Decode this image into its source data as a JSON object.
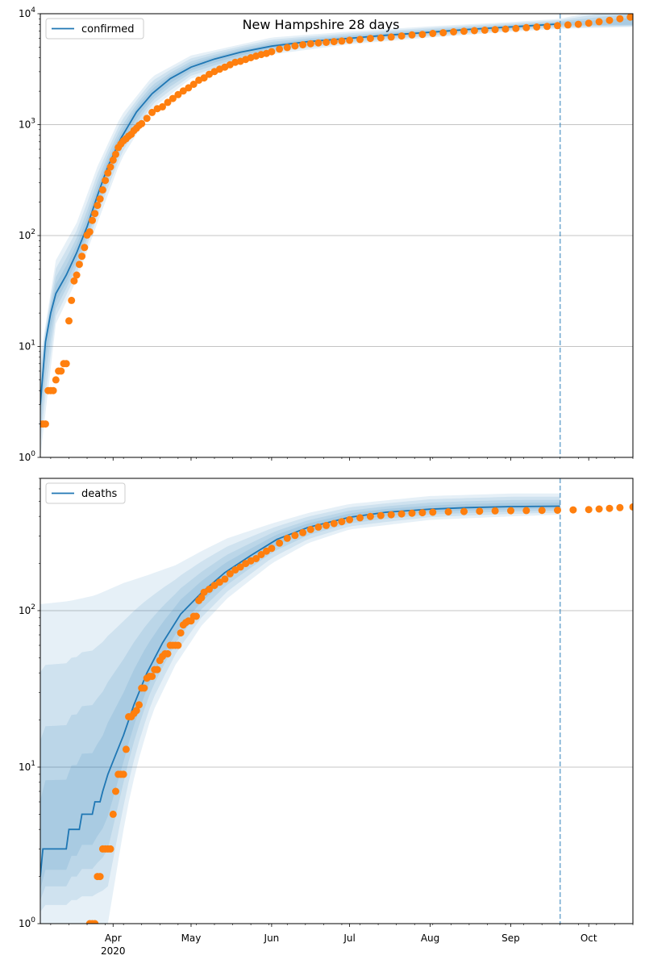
{
  "title": "New Hampshire 28 days",
  "colors": {
    "model": "#1f77b4",
    "observed": "#ff7f0e",
    "band": "#1f77b4",
    "grid": "#b0b0b0"
  },
  "x_axis": {
    "ticks": [
      "Apr",
      "May",
      "Jun",
      "Jul",
      "Aug",
      "Sep",
      "Oct"
    ],
    "tick_dates": [
      "2020-04-01",
      "2020-05-01",
      "2020-06-01",
      "2020-07-01",
      "2020-08-01",
      "2020-09-01",
      "2020-10-01"
    ],
    "year_label": "2020",
    "range": [
      "2020-03-04",
      "2020-10-18"
    ]
  },
  "forecast_start": "2020-09-20",
  "chart_data": [
    {
      "type": "line",
      "scale": "log",
      "legend": "confirmed",
      "legend_location": "upper-left",
      "grid": "horizontal",
      "ylim": [
        1,
        10000
      ],
      "y_ticks": [
        {
          "base": "10",
          "exp": "0"
        },
        {
          "base": "10",
          "exp": "1"
        },
        {
          "base": "10",
          "exp": "2"
        },
        {
          "base": "10",
          "exp": "3"
        },
        {
          "base": "10",
          "exp": "4"
        }
      ],
      "model": [
        [
          "2020-03-04",
          3
        ],
        [
          "2020-03-06",
          11
        ],
        [
          "2020-03-08",
          20
        ],
        [
          "2020-03-10",
          30
        ],
        [
          "2020-03-14",
          44
        ],
        [
          "2020-03-18",
          70
        ],
        [
          "2020-03-22",
          120
        ],
        [
          "2020-03-26",
          230
        ],
        [
          "2020-03-30",
          420
        ],
        [
          "2020-04-04",
          750
        ],
        [
          "2020-04-10",
          1300
        ],
        [
          "2020-04-16",
          1900
        ],
        [
          "2020-04-23",
          2600
        ],
        [
          "2020-05-01",
          3300
        ],
        [
          "2020-05-10",
          3900
        ],
        [
          "2020-05-20",
          4500
        ],
        [
          "2020-06-01",
          5100
        ],
        [
          "2020-06-15",
          5600
        ],
        [
          "2020-07-01",
          6000
        ],
        [
          "2020-07-15",
          6400
        ],
        [
          "2020-08-01",
          6800
        ],
        [
          "2020-08-15",
          7200
        ],
        [
          "2020-09-01",
          7600
        ],
        [
          "2020-09-20",
          8100
        ]
      ],
      "bands": [
        [
          [
            "2020-03-04",
            1
          ],
          [
            "2020-03-10",
            16
          ],
          [
            "2020-03-18",
            40
          ],
          [
            "2020-03-26",
            130
          ],
          [
            "2020-04-04",
            480
          ],
          [
            "2020-04-16",
            1400
          ],
          [
            "2020-05-01",
            2600
          ],
          [
            "2020-06-01",
            4300
          ],
          [
            "2020-07-01",
            5300
          ],
          [
            "2020-08-01",
            6100
          ],
          [
            "2020-09-01",
            6900
          ],
          [
            "2020-09-20",
            7300
          ],
          [
            "2020-10-18",
            7600
          ]
        ],
        [
          [
            "2020-03-04",
            8
          ],
          [
            "2020-03-10",
            60
          ],
          [
            "2020-03-18",
            130
          ],
          [
            "2020-03-26",
            420
          ],
          [
            "2020-04-04",
            1200
          ],
          [
            "2020-04-16",
            2700
          ],
          [
            "2020-05-01",
            4200
          ],
          [
            "2020-06-01",
            6100
          ],
          [
            "2020-07-01",
            6900
          ],
          [
            "2020-08-01",
            7700
          ],
          [
            "2020-09-01",
            8400
          ],
          [
            "2020-09-20",
            9000
          ],
          [
            "2020-10-18",
            12500
          ]
        ]
      ],
      "observed": [
        [
          "2020-03-04",
          2
        ],
        [
          "2020-03-05",
          2
        ],
        [
          "2020-03-06",
          2
        ],
        [
          "2020-03-07",
          4
        ],
        [
          "2020-03-08",
          4
        ],
        [
          "2020-03-09",
          4
        ],
        [
          "2020-03-10",
          5
        ],
        [
          "2020-03-11",
          6
        ],
        [
          "2020-03-12",
          6
        ],
        [
          "2020-03-13",
          7
        ],
        [
          "2020-03-14",
          7
        ],
        [
          "2020-03-15",
          17
        ],
        [
          "2020-03-16",
          26
        ],
        [
          "2020-03-17",
          39
        ],
        [
          "2020-03-18",
          44
        ],
        [
          "2020-03-19",
          55
        ],
        [
          "2020-03-20",
          65
        ],
        [
          "2020-03-21",
          78
        ],
        [
          "2020-03-22",
          101
        ],
        [
          "2020-03-23",
          108
        ],
        [
          "2020-03-24",
          137
        ],
        [
          "2020-03-25",
          158
        ],
        [
          "2020-03-26",
          187
        ],
        [
          "2020-03-27",
          214
        ],
        [
          "2020-03-28",
          258
        ],
        [
          "2020-03-29",
          314
        ],
        [
          "2020-03-30",
          367
        ],
        [
          "2020-03-31",
          415
        ],
        [
          "2020-04-01",
          479
        ],
        [
          "2020-04-02",
          540
        ],
        [
          "2020-04-03",
          621
        ],
        [
          "2020-04-04",
          669
        ],
        [
          "2020-04-05",
          715
        ],
        [
          "2020-04-06",
          747
        ],
        [
          "2020-04-07",
          788
        ],
        [
          "2020-04-08",
          819
        ],
        [
          "2020-04-09",
          885
        ],
        [
          "2020-04-10",
          929
        ],
        [
          "2020-04-11",
          985
        ],
        [
          "2020-04-12",
          1020
        ],
        [
          "2020-04-14",
          1139
        ],
        [
          "2020-04-16",
          1287
        ],
        [
          "2020-04-18",
          1392
        ],
        [
          "2020-04-20",
          1447
        ],
        [
          "2020-04-22",
          1588
        ],
        [
          "2020-04-24",
          1720
        ],
        [
          "2020-04-26",
          1864
        ],
        [
          "2020-04-28",
          2010
        ],
        [
          "2020-04-30",
          2146
        ],
        [
          "2020-05-02",
          2310
        ],
        [
          "2020-05-04",
          2518
        ],
        [
          "2020-05-06",
          2636
        ],
        [
          "2020-05-08",
          2843
        ],
        [
          "2020-05-10",
          3011
        ],
        [
          "2020-05-12",
          3160
        ],
        [
          "2020-05-14",
          3299
        ],
        [
          "2020-05-16",
          3464
        ],
        [
          "2020-05-18",
          3652
        ],
        [
          "2020-05-20",
          3721
        ],
        [
          "2020-05-22",
          3868
        ],
        [
          "2020-05-24",
          4014
        ],
        [
          "2020-05-26",
          4149
        ],
        [
          "2020-05-28",
          4286
        ],
        [
          "2020-05-30",
          4386
        ],
        [
          "2020-06-01",
          4545
        ],
        [
          "2020-06-04",
          4795
        ],
        [
          "2020-06-07",
          4960
        ],
        [
          "2020-06-10",
          5115
        ],
        [
          "2020-06-13",
          5251
        ],
        [
          "2020-06-16",
          5364
        ],
        [
          "2020-06-19",
          5450
        ],
        [
          "2020-06-22",
          5518
        ],
        [
          "2020-06-25",
          5598
        ],
        [
          "2020-06-28",
          5670
        ],
        [
          "2020-07-01",
          5760
        ],
        [
          "2020-07-05",
          5857
        ],
        [
          "2020-07-09",
          5986
        ],
        [
          "2020-07-13",
          6054
        ],
        [
          "2020-07-17",
          6165
        ],
        [
          "2020-07-21",
          6295
        ],
        [
          "2020-07-25",
          6436
        ],
        [
          "2020-07-29",
          6500
        ],
        [
          "2020-08-02",
          6640
        ],
        [
          "2020-08-06",
          6741
        ],
        [
          "2020-08-10",
          6861
        ],
        [
          "2020-08-14",
          6954
        ],
        [
          "2020-08-18",
          7034
        ],
        [
          "2020-08-22",
          7102
        ],
        [
          "2020-08-26",
          7188
        ],
        [
          "2020-08-30",
          7262
        ],
        [
          "2020-09-03",
          7360
        ],
        [
          "2020-09-07",
          7480
        ],
        [
          "2020-09-11",
          7580
        ],
        [
          "2020-09-15",
          7680
        ],
        [
          "2020-09-19",
          7810
        ],
        [
          "2020-09-23",
          7920
        ],
        [
          "2020-09-27",
          8035
        ],
        [
          "2020-10-01",
          8220
        ],
        [
          "2020-10-05",
          8470
        ],
        [
          "2020-10-09",
          8720
        ],
        [
          "2020-10-13",
          9020
        ],
        [
          "2020-10-17",
          9320
        ],
        [
          "2020-10-18",
          9430
        ]
      ]
    },
    {
      "type": "line",
      "scale": "log",
      "legend": "deaths",
      "legend_location": "upper-left",
      "grid": "horizontal",
      "ylim": [
        1,
        700
      ],
      "y_ticks": [
        {
          "base": "10",
          "exp": "0"
        },
        {
          "base": "10",
          "exp": "1"
        },
        {
          "base": "10",
          "exp": "2"
        }
      ],
      "model": [
        [
          "2020-03-04",
          2
        ],
        [
          "2020-03-05",
          3
        ],
        [
          "2020-03-14",
          3
        ],
        [
          "2020-03-15",
          4
        ],
        [
          "2020-03-19",
          4
        ],
        [
          "2020-03-20",
          5
        ],
        [
          "2020-03-24",
          5
        ],
        [
          "2020-03-25",
          6
        ],
        [
          "2020-03-27",
          6
        ],
        [
          "2020-03-28",
          7
        ],
        [
          "2020-03-30",
          9
        ],
        [
          "2020-04-02",
          12
        ],
        [
          "2020-04-05",
          16
        ],
        [
          "2020-04-09",
          25
        ],
        [
          "2020-04-14",
          40
        ],
        [
          "2020-04-20",
          62
        ],
        [
          "2020-04-27",
          95
        ],
        [
          "2020-05-05",
          130
        ],
        [
          "2020-05-14",
          175
        ],
        [
          "2020-05-24",
          225
        ],
        [
          "2020-06-03",
          285
        ],
        [
          "2020-06-15",
          340
        ],
        [
          "2020-07-01",
          395
        ],
        [
          "2020-07-15",
          425
        ],
        [
          "2020-08-01",
          445
        ],
        [
          "2020-08-15",
          455
        ],
        [
          "2020-09-01",
          462
        ],
        [
          "2020-09-20",
          465
        ]
      ],
      "bands": [
        [
          [
            "2020-03-04",
            1
          ],
          [
            "2020-03-30",
            1
          ],
          [
            "2020-04-02",
            2
          ],
          [
            "2020-04-06",
            5
          ],
          [
            "2020-04-10",
            10
          ],
          [
            "2020-04-16",
            22
          ],
          [
            "2020-04-25",
            45
          ],
          [
            "2020-05-05",
            80
          ],
          [
            "2020-05-15",
            120
          ],
          [
            "2020-06-01",
            200
          ],
          [
            "2020-06-15",
            270
          ],
          [
            "2020-07-01",
            330
          ],
          [
            "2020-08-01",
            380
          ],
          [
            "2020-09-01",
            400
          ],
          [
            "2020-09-20",
            410
          ]
        ],
        [
          [
            "2020-03-04",
            110
          ],
          [
            "2020-03-15",
            115
          ],
          [
            "2020-03-25",
            125
          ],
          [
            "2020-04-05",
            150
          ],
          [
            "2020-04-15",
            170
          ],
          [
            "2020-04-25",
            195
          ],
          [
            "2020-05-05",
            240
          ],
          [
            "2020-05-15",
            290
          ],
          [
            "2020-06-01",
            360
          ],
          [
            "2020-06-15",
            420
          ],
          [
            "2020-07-01",
            480
          ],
          [
            "2020-08-01",
            540
          ],
          [
            "2020-09-01",
            560
          ],
          [
            "2020-09-20",
            560
          ]
        ]
      ],
      "observed": [
        [
          "2020-03-23",
          1
        ],
        [
          "2020-03-24",
          1
        ],
        [
          "2020-03-25",
          1
        ],
        [
          "2020-03-26",
          2
        ],
        [
          "2020-03-27",
          2
        ],
        [
          "2020-03-28",
          3
        ],
        [
          "2020-03-29",
          3
        ],
        [
          "2020-03-30",
          3
        ],
        [
          "2020-03-31",
          3
        ],
        [
          "2020-04-01",
          5
        ],
        [
          "2020-04-02",
          7
        ],
        [
          "2020-04-03",
          9
        ],
        [
          "2020-04-04",
          9
        ],
        [
          "2020-04-05",
          9
        ],
        [
          "2020-04-06",
          13
        ],
        [
          "2020-04-07",
          21
        ],
        [
          "2020-04-08",
          21
        ],
        [
          "2020-04-09",
          22
        ],
        [
          "2020-04-10",
          23
        ],
        [
          "2020-04-11",
          25
        ],
        [
          "2020-04-12",
          32
        ],
        [
          "2020-04-13",
          32
        ],
        [
          "2020-04-14",
          37
        ],
        [
          "2020-04-15",
          38
        ],
        [
          "2020-04-16",
          38
        ],
        [
          "2020-04-17",
          42
        ],
        [
          "2020-04-18",
          42
        ],
        [
          "2020-04-19",
          48
        ],
        [
          "2020-04-20",
          51
        ],
        [
          "2020-04-21",
          53
        ],
        [
          "2020-04-22",
          53
        ],
        [
          "2020-04-23",
          60
        ],
        [
          "2020-04-24",
          60
        ],
        [
          "2020-04-25",
          60
        ],
        [
          "2020-04-26",
          60
        ],
        [
          "2020-04-27",
          72
        ],
        [
          "2020-04-28",
          81
        ],
        [
          "2020-04-29",
          84
        ],
        [
          "2020-04-30",
          86
        ],
        [
          "2020-05-01",
          86
        ],
        [
          "2020-05-02",
          92
        ],
        [
          "2020-05-03",
          92
        ],
        [
          "2020-05-04",
          116
        ],
        [
          "2020-05-05",
          121
        ],
        [
          "2020-05-06",
          131
        ],
        [
          "2020-05-08",
          137
        ],
        [
          "2020-05-10",
          145
        ],
        [
          "2020-05-12",
          152
        ],
        [
          "2020-05-14",
          159
        ],
        [
          "2020-05-16",
          172
        ],
        [
          "2020-05-18",
          182
        ],
        [
          "2020-05-20",
          190
        ],
        [
          "2020-05-22",
          200
        ],
        [
          "2020-05-24",
          208
        ],
        [
          "2020-05-26",
          215
        ],
        [
          "2020-05-28",
          228
        ],
        [
          "2020-05-30",
          240
        ],
        [
          "2020-06-01",
          250
        ],
        [
          "2020-06-04",
          270
        ],
        [
          "2020-06-07",
          290
        ],
        [
          "2020-06-10",
          302
        ],
        [
          "2020-06-13",
          315
        ],
        [
          "2020-06-16",
          330
        ],
        [
          "2020-06-19",
          342
        ],
        [
          "2020-06-22",
          350
        ],
        [
          "2020-06-25",
          360
        ],
        [
          "2020-06-28",
          370
        ],
        [
          "2020-07-01",
          381
        ],
        [
          "2020-07-05",
          392
        ],
        [
          "2020-07-09",
          400
        ],
        [
          "2020-07-13",
          405
        ],
        [
          "2020-07-17",
          410
        ],
        [
          "2020-07-21",
          415
        ],
        [
          "2020-07-25",
          419
        ],
        [
          "2020-07-29",
          422
        ],
        [
          "2020-08-02",
          425
        ],
        [
          "2020-08-08",
          428
        ],
        [
          "2020-08-14",
          430
        ],
        [
          "2020-08-20",
          432
        ],
        [
          "2020-08-26",
          434
        ],
        [
          "2020-09-01",
          435
        ],
        [
          "2020-09-07",
          436
        ],
        [
          "2020-09-13",
          437
        ],
        [
          "2020-09-19",
          438
        ],
        [
          "2020-09-25",
          440
        ],
        [
          "2020-10-01",
          442
        ],
        [
          "2020-10-05",
          446
        ],
        [
          "2020-10-09",
          450
        ],
        [
          "2020-10-13",
          455
        ],
        [
          "2020-10-18",
          460
        ]
      ]
    }
  ]
}
